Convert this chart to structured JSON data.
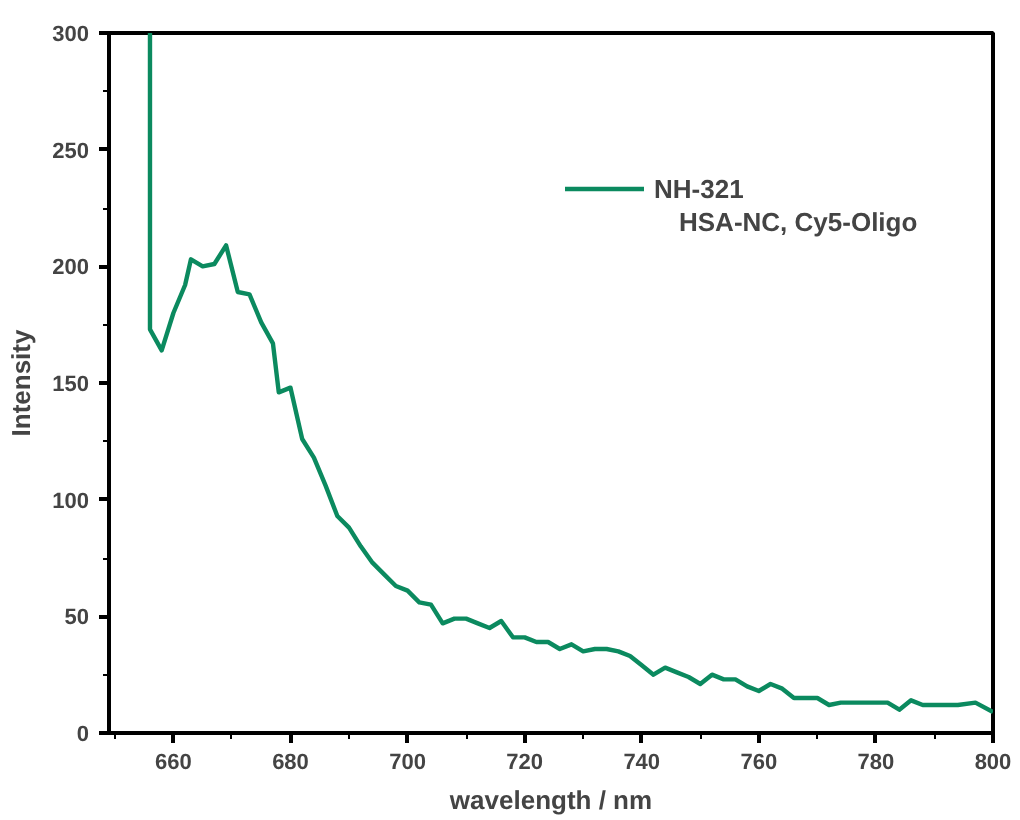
{
  "chart_data": {
    "type": "line",
    "xlabel": "wavelength / nm",
    "ylabel": "Intensity",
    "xlim": [
      649,
      800
    ],
    "ylim": [
      0,
      300
    ],
    "xticks": [
      660,
      680,
      700,
      720,
      740,
      760,
      780,
      800
    ],
    "yticks": [
      0,
      50,
      100,
      150,
      200,
      250,
      300
    ],
    "x": [
      656,
      656,
      658,
      660,
      662,
      663,
      665,
      667,
      669,
      671,
      673,
      675,
      677,
      678,
      680,
      682,
      684,
      686,
      688,
      690,
      692,
      694,
      696,
      698,
      700,
      702,
      704,
      706,
      708,
      710,
      712,
      714,
      716,
      718,
      720,
      722,
      724,
      726,
      728,
      730,
      732,
      734,
      736,
      738,
      740,
      742,
      744,
      746,
      748,
      750,
      752,
      754,
      756,
      758,
      760,
      762,
      764,
      766,
      768,
      770,
      772,
      774,
      776,
      778,
      780,
      782,
      784,
      786,
      788,
      790,
      792,
      794,
      797,
      800
    ],
    "series": [
      {
        "name": "NH-321",
        "color": "#0b8a5f",
        "values": [
          300,
          173,
          164,
          180,
          192,
          203,
          200,
          201,
          209,
          189,
          188,
          176,
          167,
          146,
          148,
          126,
          118,
          106,
          93,
          88,
          80,
          73,
          68,
          63,
          61,
          56,
          55,
          47,
          49,
          49,
          47,
          45,
          48,
          41,
          41,
          39,
          39,
          36,
          38,
          35,
          36,
          36,
          35,
          33,
          29,
          25,
          28,
          26,
          24,
          21,
          25,
          23,
          23,
          20,
          18,
          21,
          19,
          15,
          15,
          15,
          12,
          13,
          13,
          13,
          13,
          13,
          10,
          14,
          12,
          12,
          12,
          12,
          13,
          9
        ]
      }
    ],
    "annotations": [
      "HSA-NC, Cy5-Oligo"
    ],
    "legend": "top right",
    "grid": false,
    "marker": "none",
    "line_style": "solid"
  }
}
